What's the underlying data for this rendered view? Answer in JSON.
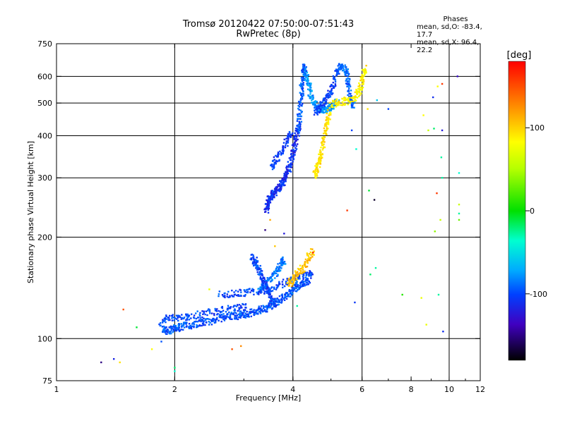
{
  "title_line1": "Tromsø 20120422 07:50:00-07:51:43",
  "title_line2": "RwPretec (8p)",
  "phases": {
    "header": "Phases",
    "line_o": "mean, sd,O:  -83.4, 17.7",
    "line_x": "mean, sd,X:  96.4, 22.2"
  },
  "colorbar": {
    "unit_label": "[deg]",
    "ticks": [
      {
        "value": 100,
        "label": "100"
      },
      {
        "value": 0,
        "label": "0"
      },
      {
        "value": -100,
        "label": "-100"
      }
    ],
    "range": [
      -180,
      180
    ]
  },
  "chart_data": {
    "type": "scatter",
    "xlabel": "Frequency [MHz]",
    "ylabel": "Stationary phase Virtual Height [km]",
    "xscale": "log",
    "yscale": "log",
    "xlim": [
      1,
      12
    ],
    "ylim": [
      75,
      750
    ],
    "xticks": [
      {
        "value": 1,
        "label": "1"
      },
      {
        "value": 2,
        "label": "2"
      },
      {
        "value": 4,
        "label": "4"
      },
      {
        "value": 6,
        "label": "6"
      },
      {
        "value": 8,
        "label": "8"
      },
      {
        "value": 10,
        "label": "10"
      },
      {
        "value": 12,
        "label": "12"
      }
    ],
    "xgrid": [
      2,
      4,
      6,
      10
    ],
    "yticks": [
      {
        "value": 75,
        "label": "75"
      },
      {
        "value": 100,
        "label": "100"
      },
      {
        "value": 200,
        "label": "200"
      },
      {
        "value": 300,
        "label": "300"
      },
      {
        "value": 400,
        "label": "400"
      },
      {
        "value": 500,
        "label": "500"
      },
      {
        "value": 600,
        "label": "600"
      },
      {
        "value": 750,
        "label": "750"
      }
    ],
    "ygrid": [
      100,
      200,
      300,
      400,
      500,
      600
    ],
    "grid": true,
    "traces": [
      {
        "phase": -95,
        "points": [
          [
            1.85,
            108
          ],
          [
            1.9,
            105
          ],
          [
            1.95,
            106
          ],
          [
            2.0,
            107
          ],
          [
            2.05,
            108
          ],
          [
            2.1,
            109
          ],
          [
            2.2,
            110
          ],
          [
            2.3,
            111
          ],
          [
            2.4,
            112
          ],
          [
            2.5,
            113
          ],
          [
            2.6,
            115
          ],
          [
            2.7,
            116
          ],
          [
            2.8,
            117
          ],
          [
            2.9,
            117
          ],
          [
            3.0,
            118
          ],
          [
            3.1,
            119
          ],
          [
            3.2,
            120
          ],
          [
            3.3,
            122
          ],
          [
            3.4,
            123
          ],
          [
            3.5,
            125
          ],
          [
            3.6,
            127
          ],
          [
            3.7,
            130
          ],
          [
            3.8,
            133
          ],
          [
            3.9,
            136
          ],
          [
            4.0,
            140
          ],
          [
            4.1,
            143
          ],
          [
            4.2,
            145
          ],
          [
            4.3,
            147
          ],
          [
            4.4,
            148
          ]
        ]
      },
      {
        "phase": -100,
        "points": [
          [
            1.85,
            114
          ],
          [
            1.95,
            115
          ],
          [
            2.05,
            115
          ],
          [
            2.15,
            116
          ],
          [
            2.3,
            118
          ],
          [
            2.5,
            120
          ],
          [
            2.7,
            122
          ],
          [
            2.9,
            123
          ],
          [
            3.05,
            125
          ]
        ]
      },
      {
        "phase": -100,
        "points": [
          [
            2.6,
            135
          ],
          [
            2.8,
            136
          ],
          [
            3.0,
            137
          ],
          [
            3.2,
            138
          ],
          [
            3.4,
            139
          ],
          [
            3.6,
            142
          ],
          [
            3.8,
            146
          ],
          [
            4.0,
            150
          ],
          [
            4.2,
            153
          ],
          [
            4.4,
            155
          ],
          [
            4.5,
            156
          ]
        ]
      },
      {
        "phase": -85,
        "points": [
          [
            3.3,
            140
          ],
          [
            3.4,
            145
          ],
          [
            3.5,
            150
          ],
          [
            3.6,
            156
          ],
          [
            3.7,
            162
          ],
          [
            3.75,
            168
          ],
          [
            3.8,
            172
          ]
        ]
      },
      {
        "phase": -100,
        "points": [
          [
            3.15,
            175
          ],
          [
            3.2,
            170
          ],
          [
            3.25,
            165
          ],
          [
            3.3,
            158
          ],
          [
            3.35,
            150
          ],
          [
            3.4,
            145
          ],
          [
            3.45,
            140
          ],
          [
            3.5,
            135
          ],
          [
            3.55,
            130
          ],
          [
            3.6,
            126
          ]
        ]
      },
      {
        "phase": -110,
        "points": [
          [
            3.42,
            240
          ],
          [
            3.44,
            248
          ],
          [
            3.47,
            255
          ],
          [
            3.5,
            262
          ],
          [
            3.55,
            268
          ],
          [
            3.6,
            272
          ],
          [
            3.65,
            276
          ],
          [
            3.7,
            281
          ],
          [
            3.75,
            287
          ],
          [
            3.8,
            295
          ],
          [
            3.85,
            305
          ],
          [
            3.9,
            318
          ],
          [
            3.95,
            335
          ],
          [
            4.0,
            355
          ],
          [
            4.05,
            378
          ],
          [
            4.1,
            400
          ],
          [
            4.15,
            430
          ]
        ]
      },
      {
        "phase": -105,
        "points": [
          [
            3.55,
            320
          ],
          [
            3.6,
            335
          ],
          [
            3.7,
            350
          ],
          [
            3.8,
            370
          ],
          [
            3.9,
            395
          ],
          [
            3.95,
            410
          ]
        ]
      },
      {
        "phase": -95,
        "points": [
          [
            4.1,
            410
          ],
          [
            4.15,
            440
          ],
          [
            4.17,
            480
          ],
          [
            4.2,
            520
          ],
          [
            4.22,
            560
          ],
          [
            4.25,
            600
          ],
          [
            4.28,
            630
          ],
          [
            4.3,
            645
          ]
        ]
      },
      {
        "phase": -75,
        "points": [
          [
            4.3,
            620
          ],
          [
            4.35,
            590
          ],
          [
            4.4,
            560
          ],
          [
            4.45,
            530
          ],
          [
            4.5,
            505
          ],
          [
            4.6,
            490
          ],
          [
            4.7,
            480
          ],
          [
            4.8,
            475
          ],
          [
            4.9,
            478
          ],
          [
            5.0,
            485
          ],
          [
            5.1,
            495
          ],
          [
            5.2,
            505
          ]
        ]
      },
      {
        "phase": -100,
        "points": [
          [
            4.55,
            470
          ],
          [
            4.65,
            480
          ],
          [
            4.75,
            495
          ],
          [
            4.85,
            510
          ],
          [
            4.95,
            530
          ],
          [
            5.05,
            560
          ],
          [
            5.15,
            600
          ],
          [
            5.25,
            640
          ]
        ]
      },
      {
        "phase": -90,
        "points": [
          [
            5.25,
            640
          ],
          [
            5.35,
            640
          ],
          [
            5.45,
            630
          ],
          [
            5.5,
            600
          ],
          [
            5.55,
            560
          ],
          [
            5.6,
            520
          ],
          [
            5.65,
            500
          ],
          [
            5.7,
            495
          ]
        ]
      },
      {
        "phase": 100,
        "points": [
          [
            4.55,
            305
          ],
          [
            4.6,
            315
          ],
          [
            4.65,
            330
          ],
          [
            4.7,
            345
          ],
          [
            4.75,
            365
          ],
          [
            4.8,
            390
          ],
          [
            4.85,
            420
          ],
          [
            4.9,
            445
          ],
          [
            4.95,
            470
          ]
        ]
      },
      {
        "phase": 95,
        "points": [
          [
            5.0,
            495
          ],
          [
            5.2,
            500
          ],
          [
            5.4,
            505
          ],
          [
            5.6,
            510
          ],
          [
            5.8,
            525
          ],
          [
            5.9,
            540
          ],
          [
            6.0,
            570
          ],
          [
            6.05,
            610
          ],
          [
            6.1,
            640
          ]
        ]
      },
      {
        "phase": 110,
        "points": [
          [
            3.9,
            145
          ],
          [
            4.0,
            150
          ],
          [
            4.1,
            155
          ],
          [
            4.2,
            160
          ],
          [
            4.3,
            165
          ],
          [
            4.4,
            175
          ],
          [
            4.5,
            182
          ]
        ]
      }
    ],
    "scatter": [
      {
        "x": 1.3,
        "y": 85,
        "phase": -150
      },
      {
        "x": 1.4,
        "y": 87,
        "phase": -115
      },
      {
        "x": 1.45,
        "y": 85,
        "phase": 100
      },
      {
        "x": 1.48,
        "y": 122,
        "phase": 150
      },
      {
        "x": 1.6,
        "y": 108,
        "phase": -10
      },
      {
        "x": 1.75,
        "y": 93,
        "phase": 90
      },
      {
        "x": 1.85,
        "y": 98,
        "phase": -95
      },
      {
        "x": 2.0,
        "y": 82,
        "phase": -20
      },
      {
        "x": 2.0,
        "y": 80,
        "phase": -40
      },
      {
        "x": 2.45,
        "y": 140,
        "phase": 80
      },
      {
        "x": 2.8,
        "y": 93,
        "phase": 150
      },
      {
        "x": 2.95,
        "y": 95,
        "phase": 130
      },
      {
        "x": 3.4,
        "y": 210,
        "phase": -150
      },
      {
        "x": 3.5,
        "y": 225,
        "phase": 120
      },
      {
        "x": 3.8,
        "y": 205,
        "phase": -120
      },
      {
        "x": 3.6,
        "y": 188,
        "phase": 110
      },
      {
        "x": 4.5,
        "y": 180,
        "phase": 170
      },
      {
        "x": 4.1,
        "y": 125,
        "phase": -30
      },
      {
        "x": 5.5,
        "y": 240,
        "phase": 160
      },
      {
        "x": 5.65,
        "y": 415,
        "phase": -100
      },
      {
        "x": 5.8,
        "y": 365,
        "phase": -40
      },
      {
        "x": 5.75,
        "y": 128,
        "phase": -105
      },
      {
        "x": 6.2,
        "y": 480,
        "phase": 100
      },
      {
        "x": 6.25,
        "y": 275,
        "phase": -10
      },
      {
        "x": 6.3,
        "y": 155,
        "phase": -20
      },
      {
        "x": 6.45,
        "y": 258,
        "phase": -170
      },
      {
        "x": 6.5,
        "y": 162,
        "phase": -30
      },
      {
        "x": 6.55,
        "y": 510,
        "phase": -60
      },
      {
        "x": 7.0,
        "y": 480,
        "phase": -100
      },
      {
        "x": 7.6,
        "y": 135,
        "phase": 10
      },
      {
        "x": 8.5,
        "y": 132,
        "phase": 80
      },
      {
        "x": 8.6,
        "y": 460,
        "phase": 90
      },
      {
        "x": 8.75,
        "y": 110,
        "phase": 80
      },
      {
        "x": 9.1,
        "y": 520,
        "phase": -110
      },
      {
        "x": 9.15,
        "y": 420,
        "phase": -20
      },
      {
        "x": 9.3,
        "y": 270,
        "phase": 160
      },
      {
        "x": 9.2,
        "y": 208,
        "phase": 40
      },
      {
        "x": 9.35,
        "y": 560,
        "phase": 90
      },
      {
        "x": 9.4,
        "y": 135,
        "phase": -30
      },
      {
        "x": 9.5,
        "y": 225,
        "phase": 60
      },
      {
        "x": 9.55,
        "y": 345,
        "phase": -30
      },
      {
        "x": 9.6,
        "y": 570,
        "phase": 160
      },
      {
        "x": 9.6,
        "y": 415,
        "phase": -120
      },
      {
        "x": 9.6,
        "y": 300,
        "phase": -30
      },
      {
        "x": 9.65,
        "y": 105,
        "phase": -110
      },
      {
        "x": 10.5,
        "y": 600,
        "phase": -130
      },
      {
        "x": 10.6,
        "y": 310,
        "phase": -40
      },
      {
        "x": 10.6,
        "y": 250,
        "phase": 60
      },
      {
        "x": 10.6,
        "y": 235,
        "phase": -30
      },
      {
        "x": 10.6,
        "y": 225,
        "phase": 30
      },
      {
        "x": 8.85,
        "y": 415,
        "phase": 60
      }
    ]
  }
}
